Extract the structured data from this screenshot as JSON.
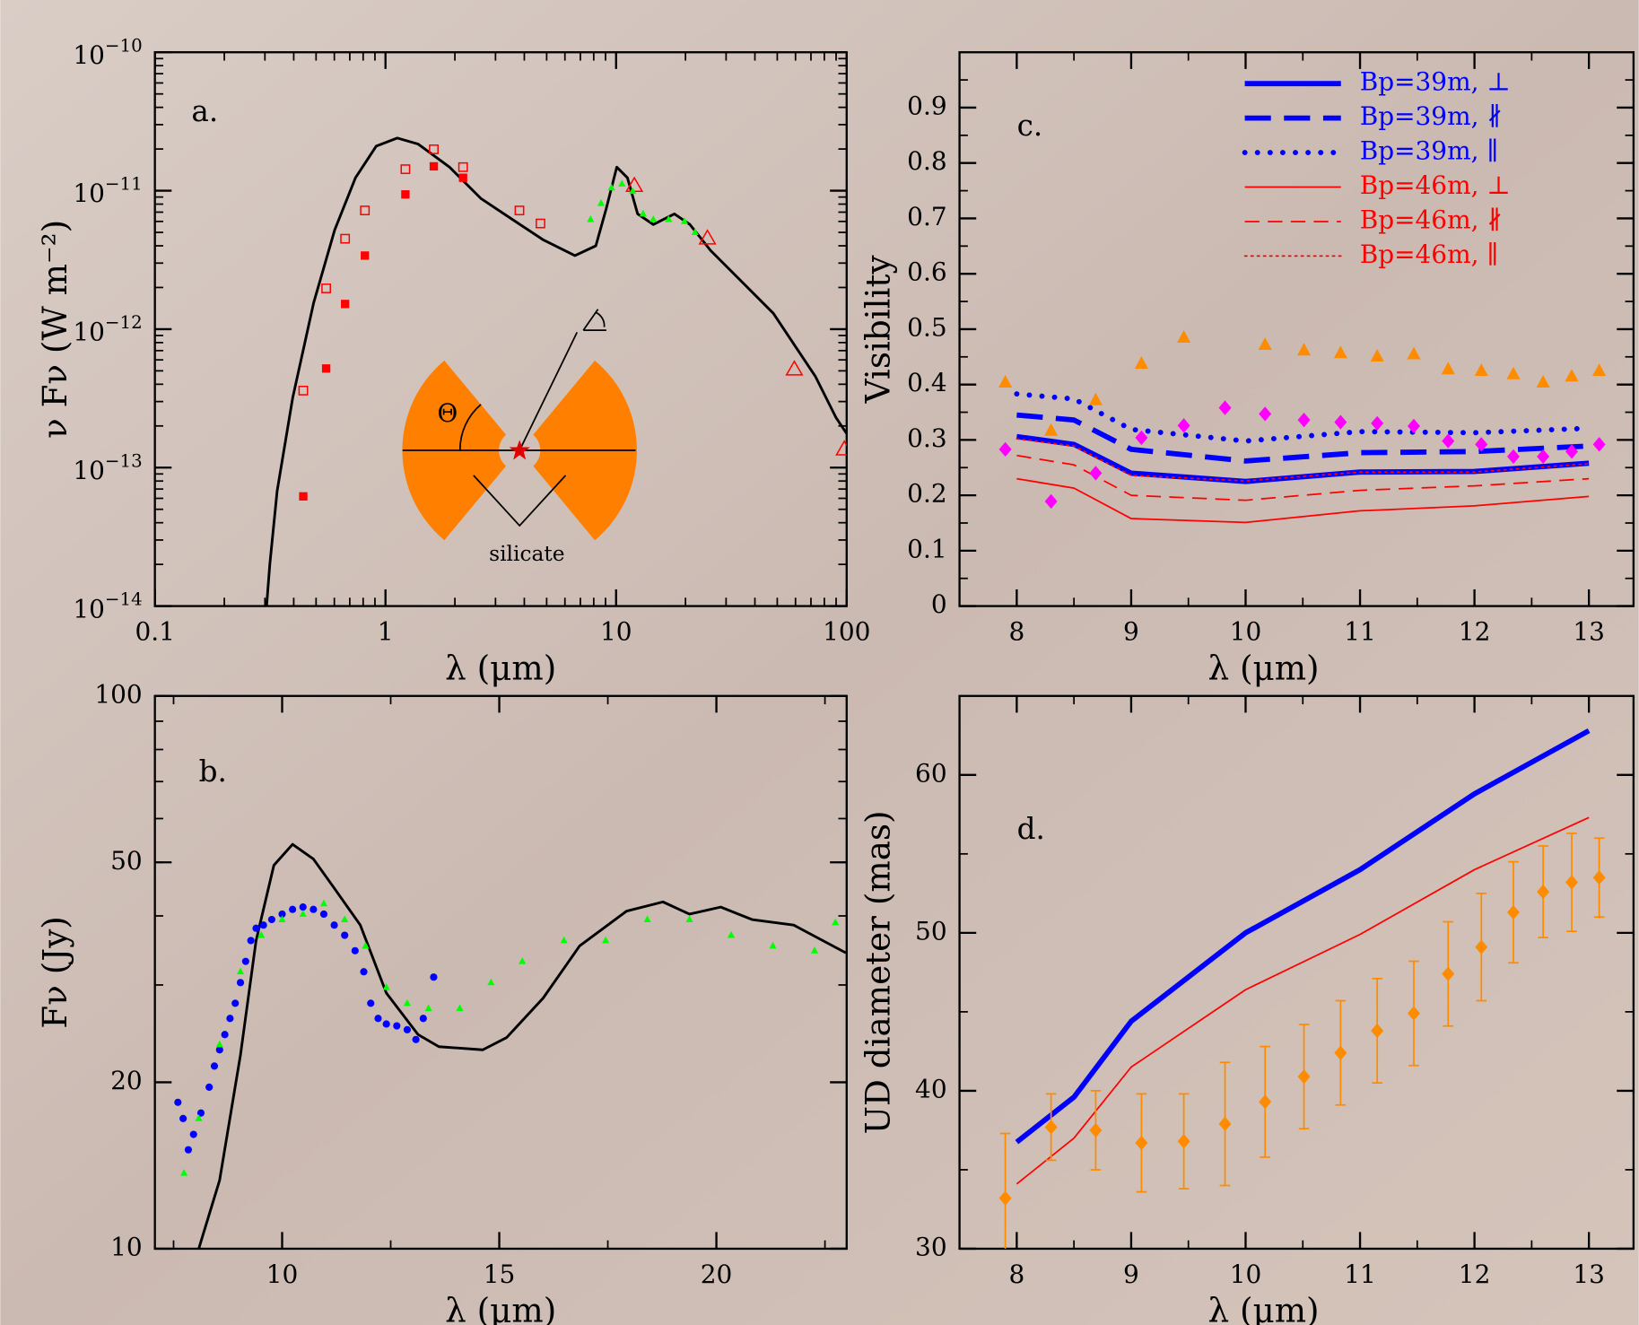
{
  "chart_data": [
    {
      "type": "line",
      "panel_label": "a.",
      "xlabel": "λ (μm)",
      "ylabel": "ν Fν (W m⁻²)",
      "xscale": "log",
      "yscale": "log",
      "xlim": [
        0.1,
        100
      ],
      "ylim": [
        1e-14,
        1e-10
      ],
      "xticks": [
        0.1,
        1,
        10,
        100
      ],
      "yticks": [
        {
          "value": 1e-10,
          "label": "10−10"
        },
        {
          "value": 1e-11,
          "label": "10−11"
        },
        {
          "value": 1e-12,
          "label": "10−12"
        },
        {
          "value": 1e-13,
          "label": "10−13"
        },
        {
          "value": 1e-14,
          "label": "10−14"
        }
      ],
      "inset_labels": [
        "Θ",
        "silicate"
      ],
      "series": [
        {
          "color": "#000000",
          "line": "solid",
          "linewidth": 2.5,
          "x": [
            0.305,
            0.315,
            0.339,
            0.396,
            0.488,
            0.602,
            0.741,
            0.912,
            1.125,
            1.387,
            1.896,
            2.59,
            3.55,
            4.85,
            6.63,
            8.17,
            9.06,
            10.07,
            11.2,
            12.4,
            14.5,
            17.9,
            20.9,
            25.7,
            35.2,
            48.1,
            59.3,
            73.1,
            90.0,
            100
          ],
          "values": [
            1e-14,
            2e-14,
            6.8e-14,
            3.2e-13,
            1.55e-12,
            5.2e-12,
            1.24e-11,
            2.1e-11,
            2.4e-11,
            2.17e-11,
            1.48e-11,
            8.8e-12,
            6.2e-12,
            4.4e-12,
            3.4e-12,
            4e-12,
            7.4e-12,
            1.48e-11,
            1.24e-11,
            6.8e-12,
            5.7e-12,
            6.8e-12,
            5.7e-12,
            3.7e-12,
            2.19e-12,
            1.3e-12,
            7.7e-13,
            4.57e-13,
            2.29e-13,
            1.76e-13
          ]
        },
        {
          "color": "#ff0000",
          "marker": "filled-square",
          "x": [
            0.44,
            0.553,
            0.668,
            0.814,
            1.22,
            1.62,
            2.17
          ],
          "values": [
            6.2e-14,
            5.2e-13,
            1.52e-12,
            3.4e-12,
            9.4e-12,
            1.5e-11,
            1.24e-11
          ]
        },
        {
          "color": "#ff0000",
          "marker": "open-square",
          "x": [
            0.44,
            0.553,
            0.668,
            0.814,
            1.22,
            1.62,
            2.17,
            3.81,
            4.7
          ],
          "values": [
            3.6e-13,
            1.97e-12,
            4.5e-12,
            7.2e-12,
            1.43e-11,
            1.99e-11,
            1.48e-11,
            7.2e-12,
            5.8e-12
          ]
        },
        {
          "color": "#ff0000",
          "marker": "open-triangle",
          "x": [
            12.0,
            24.9,
            59.3,
            97.7
          ],
          "values": [
            1.08e-11,
            4.5e-12,
            5.1e-13,
            1.35e-13
          ]
        },
        {
          "color": "#00ff00",
          "marker": "small-triangle",
          "x": [
            7.75,
            8.61,
            9.55,
            10.6,
            11.8,
            13.1,
            14.5,
            16.9,
            19.8,
            22.0
          ],
          "values": [
            6.2e-12,
            8.1e-12,
            1.05e-11,
            1.12e-11,
            9.9e-12,
            6.8e-12,
            6.2e-12,
            6.2e-12,
            6e-12,
            5e-12
          ]
        }
      ]
    },
    {
      "type": "line",
      "panel_label": "b.",
      "xlabel": "λ (μm)",
      "ylabel": "Fν (Jy)",
      "yscale": "log",
      "xlim": [
        7.07,
        23
      ],
      "ylim": [
        10,
        100
      ],
      "xticks": [
        10,
        15,
        20
      ],
      "yticks": [
        10,
        20,
        50,
        100
      ],
      "series": [
        {
          "color": "#000000",
          "line": "solid",
          "linewidth": 2.5,
          "x": [
            8.08,
            8.56,
            9.04,
            9.4,
            9.81,
            10.24,
            10.72,
            11.2,
            11.8,
            12.4,
            13.13,
            13.61,
            14.62,
            15.17,
            16.01,
            16.85,
            17.93,
            18.77,
            19.38,
            20.1,
            20.82,
            21.78,
            22.98
          ],
          "values": [
            10,
            13.3,
            22.4,
            36.1,
            49.4,
            53.9,
            50.7,
            44.9,
            38.5,
            29.0,
            24.4,
            23.2,
            22.9,
            24.1,
            28.4,
            35.3,
            40.8,
            42.4,
            40.3,
            41.5,
            39.4,
            38.5,
            34.3
          ]
        },
        {
          "color": "#0000ff",
          "marker": "dot",
          "x": [
            7.6,
            7.72,
            7.84,
            7.96,
            8.13,
            8.32,
            8.44,
            8.56,
            8.68,
            8.8,
            8.92,
            9.04,
            9.16,
            9.28,
            9.4,
            9.57,
            9.76,
            10.0,
            10.24,
            10.48,
            10.72,
            10.96,
            11.2,
            11.44,
            11.68,
            11.88,
            12.04,
            12.21,
            12.4,
            12.64,
            12.88,
            13.08,
            13.25,
            13.49
          ],
          "values": [
            18.4,
            17.2,
            15.1,
            16.1,
            17.6,
            19.6,
            21.4,
            22.9,
            24.4,
            26.1,
            27.8,
            30.3,
            33.1,
            36.1,
            38.0,
            38.5,
            39.4,
            40.3,
            41.1,
            41.5,
            41.1,
            40.3,
            38.5,
            36.9,
            34.6,
            31.7,
            27.8,
            26.1,
            25.5,
            25.3,
            24.9,
            23.9,
            26.1,
            31.0
          ]
        },
        {
          "color": "#00ff00",
          "marker": "small-triangle",
          "x": [
            7.74,
            8.08,
            8.56,
            9.04,
            9.52,
            10.0,
            10.48,
            10.96,
            11.44,
            11.92,
            12.4,
            12.88,
            13.37,
            14.09,
            14.81,
            15.53,
            16.49,
            17.45,
            18.41,
            19.38,
            20.34,
            21.3,
            22.26,
            22.74
          ],
          "values": [
            13.7,
            17.2,
            23.4,
            31.7,
            36.9,
            39.4,
            40.3,
            42.1,
            39.4,
            35.3,
            29.7,
            27.8,
            27.2,
            27.2,
            30.3,
            33.1,
            36.1,
            36.1,
            39.4,
            39.4,
            36.9,
            35.3,
            34.6,
            38.9
          ]
        }
      ]
    },
    {
      "type": "line",
      "panel_label": "c.",
      "xlabel": "λ (μm)",
      "ylabel": "Visibility",
      "xlim": [
        7.5,
        13.39
      ],
      "ylim": [
        0,
        1
      ],
      "xticks": [
        8,
        9,
        10,
        11,
        12,
        13
      ],
      "yticks": [
        0,
        0.1,
        0.2,
        0.3,
        0.4,
        0.5,
        0.6,
        0.7,
        0.8,
        0.9
      ],
      "legend": "upper right",
      "series": [
        {
          "name": "Bp=39m, ⊥",
          "color": "#0000ff",
          "line": "solid",
          "linewidth": 5,
          "x": [
            8,
            8.5,
            9,
            10,
            11,
            12,
            13
          ],
          "values": [
            0.306,
            0.292,
            0.24,
            0.225,
            0.242,
            0.243,
            0.258
          ]
        },
        {
          "name": "Bp=39m, ∦",
          "color": "#0000ff",
          "line": "dashed",
          "linewidth": 5,
          "x": [
            8,
            8.5,
            9,
            10,
            11,
            12,
            13
          ],
          "values": [
            0.345,
            0.336,
            0.283,
            0.262,
            0.277,
            0.279,
            0.289
          ]
        },
        {
          "name": "Bp=39m, ∥",
          "color": "#0000ff",
          "line": "dotted",
          "linewidth": 5,
          "x": [
            8,
            8.5,
            9,
            10,
            11,
            12,
            13
          ],
          "values": [
            0.383,
            0.374,
            0.319,
            0.298,
            0.315,
            0.313,
            0.321
          ]
        },
        {
          "name": "Bp=46m, ⊥",
          "color": "#ff0000",
          "line": "solid",
          "linewidth": 1.5,
          "x": [
            8,
            8.5,
            9,
            10,
            11,
            12,
            13
          ],
          "values": [
            0.23,
            0.213,
            0.158,
            0.151,
            0.172,
            0.181,
            0.198
          ]
        },
        {
          "name": "Bp=46m, ∦",
          "color": "#ff0000",
          "line": "dashed",
          "linewidth": 1.5,
          "x": [
            8,
            8.5,
            9,
            10,
            11,
            12,
            13
          ],
          "values": [
            0.272,
            0.255,
            0.2,
            0.191,
            0.209,
            0.217,
            0.23
          ]
        },
        {
          "name": "Bp=46m, ∥",
          "color": "#ff0000",
          "line": "dotted",
          "linewidth": 1.5,
          "x": [
            8,
            8.5,
            9,
            10,
            11,
            12,
            13
          ],
          "values": [
            0.302,
            0.289,
            0.236,
            0.226,
            0.242,
            0.242,
            0.257
          ]
        },
        {
          "color": "#ff8c00",
          "marker": "triangle",
          "x": [
            7.9,
            8.3,
            8.69,
            9.09,
            9.46,
            10.17,
            10.51,
            10.83,
            11.15,
            11.47,
            11.77,
            12.06,
            12.34,
            12.6,
            12.85,
            13.09
          ],
          "values": [
            0.404,
            0.317,
            0.372,
            0.438,
            0.485,
            0.472,
            0.462,
            0.457,
            0.451,
            0.455,
            0.428,
            0.425,
            0.419,
            0.404,
            0.415,
            0.425
          ]
        },
        {
          "color": "#ff00ff",
          "marker": "diamond",
          "x": [
            7.9,
            8.3,
            8.69,
            9.09,
            9.46,
            9.82,
            10.17,
            10.51,
            10.83,
            11.15,
            11.47,
            11.77,
            12.06,
            12.34,
            12.6,
            12.85,
            13.09
          ],
          "values": [
            0.283,
            0.189,
            0.24,
            0.304,
            0.326,
            0.358,
            0.347,
            0.336,
            0.332,
            0.33,
            0.325,
            0.298,
            0.292,
            0.27,
            0.27,
            0.279,
            0.292
          ]
        }
      ]
    },
    {
      "type": "line",
      "panel_label": "d.",
      "xlabel": "λ (μm)",
      "ylabel": "UD diameter (mas)",
      "xlim": [
        7.5,
        13.39
      ],
      "ylim": [
        30,
        65
      ],
      "xticks": [
        8,
        9,
        10,
        11,
        12,
        13
      ],
      "yticks": [
        30,
        40,
        50,
        60
      ],
      "series": [
        {
          "color": "#0000ff",
          "line": "solid",
          "linewidth": 5,
          "x": [
            8,
            8.5,
            9,
            10,
            11,
            12,
            13
          ],
          "values": [
            36.75,
            39.6,
            44.4,
            50.0,
            54.0,
            58.8,
            62.8
          ]
        },
        {
          "color": "#ff0000",
          "line": "solid",
          "linewidth": 1.5,
          "x": [
            8,
            8.5,
            9,
            10,
            11,
            12,
            13
          ],
          "values": [
            34.1,
            37.0,
            41.5,
            46.4,
            49.9,
            54.0,
            57.3
          ]
        },
        {
          "color": "#ff8c00",
          "marker": "diamond",
          "x": [
            7.9,
            8.3,
            8.69,
            9.09,
            9.46,
            9.82,
            10.17,
            10.51,
            10.83,
            11.15,
            11.47,
            11.77,
            12.06,
            12.34,
            12.6,
            12.85,
            13.09
          ],
          "values": [
            33.2,
            37.7,
            37.5,
            36.7,
            36.8,
            37.9,
            39.3,
            40.9,
            42.4,
            43.8,
            44.9,
            47.4,
            49.1,
            51.3,
            52.6,
            53.2,
            53.5
          ],
          "errors": [
            4.1,
            2.1,
            2.5,
            3.1,
            3.0,
            3.9,
            3.5,
            3.3,
            3.3,
            3.3,
            3.3,
            3.3,
            3.4,
            3.2,
            2.9,
            3.1,
            2.5
          ]
        }
      ]
    }
  ]
}
